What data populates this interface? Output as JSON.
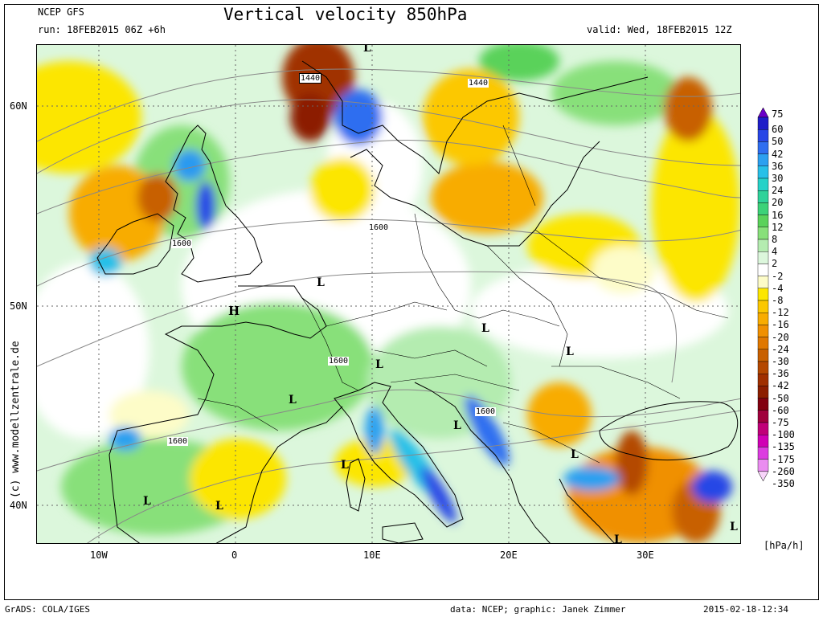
{
  "header": {
    "model": "NCEP GFS",
    "run": "run: 18FEB2015 06Z +6h",
    "title": "Vertical velocity 850hPa",
    "valid": "valid: Wed, 18FEB2015 12Z"
  },
  "map": {
    "lat_labels": [
      "60N",
      "50N",
      "40N"
    ],
    "lon_labels": [
      "10W",
      "0",
      "10E",
      "20E",
      "30E"
    ],
    "contour_labels": [
      "1440",
      "1440",
      "1600",
      "1600",
      "1600",
      "1600",
      "1600"
    ],
    "pressure_marks": {
      "high": [
        "H"
      ],
      "low": [
        "L",
        "L",
        "L",
        "L",
        "L",
        "L",
        "L",
        "L",
        "L",
        "L",
        "L",
        "L",
        "L"
      ]
    },
    "credit": "(c) www.modellzentrale.de"
  },
  "legend": {
    "unit": "[hPa/h]",
    "levels": [
      {
        "label": "75",
        "color": "#6a00c8"
      },
      {
        "label": "60",
        "color": "#1e1ec8"
      },
      {
        "label": "50",
        "color": "#2846e6"
      },
      {
        "label": "42",
        "color": "#2f6ef0"
      },
      {
        "label": "36",
        "color": "#2ca0f0"
      },
      {
        "label": "30",
        "color": "#28c0e8"
      },
      {
        "label": "24",
        "color": "#26d2c8"
      },
      {
        "label": "20",
        "color": "#2ed29a"
      },
      {
        "label": "16",
        "color": "#3cd278"
      },
      {
        "label": "12",
        "color": "#5ad25a"
      },
      {
        "label": "8",
        "color": "#88e07a"
      },
      {
        "label": "4",
        "color": "#b4ecb0"
      },
      {
        "label": "2",
        "color": "#dcf7dc"
      },
      {
        "label": "-2",
        "color": "#ffffff"
      },
      {
        "label": "-4",
        "color": "#fdfcc8"
      },
      {
        "label": "-8",
        "color": "#fce600"
      },
      {
        "label": "-12",
        "color": "#fcc800"
      },
      {
        "label": "-16",
        "color": "#f8ac00"
      },
      {
        "label": "-20",
        "color": "#f09000"
      },
      {
        "label": "-24",
        "color": "#e07800"
      },
      {
        "label": "-30",
        "color": "#c86000"
      },
      {
        "label": "-36",
        "color": "#b44800"
      },
      {
        "label": "-42",
        "color": "#a03000"
      },
      {
        "label": "-50",
        "color": "#8c1e00"
      },
      {
        "label": "-60",
        "color": "#820010"
      },
      {
        "label": "-75",
        "color": "#a0003c"
      },
      {
        "label": "-100",
        "color": "#c00078"
      },
      {
        "label": "-135",
        "color": "#d000b4"
      },
      {
        "label": "-175",
        "color": "#dc3ce0"
      },
      {
        "label": "-260",
        "color": "#ea8cf0"
      },
      {
        "label": "-350",
        "color": "#f8d4fa"
      }
    ]
  },
  "footer": {
    "left": "GrADS: COLA/IGES",
    "data": "data: NCEP; graphic: Janek Zimmer",
    "timestamp": "2015-02-18-12:34"
  }
}
